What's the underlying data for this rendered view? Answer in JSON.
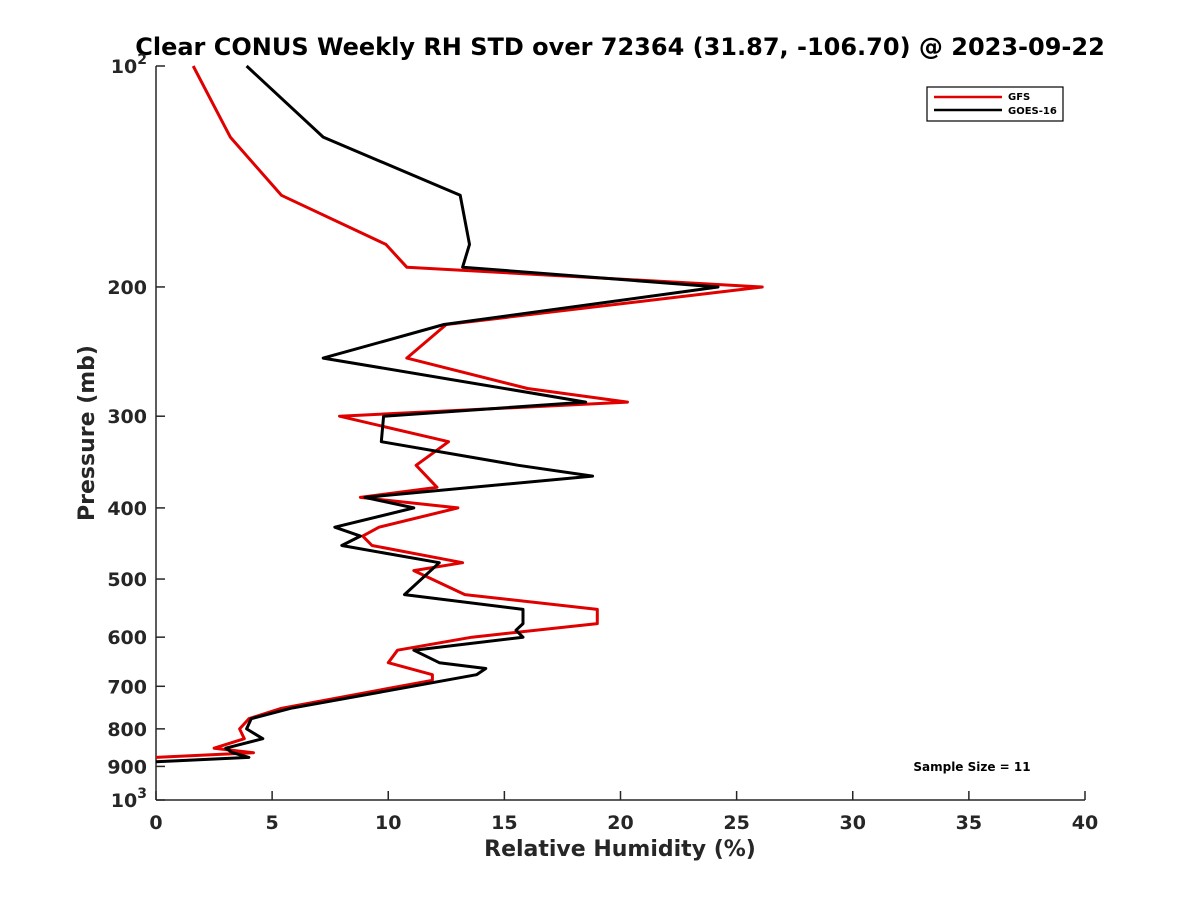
{
  "chart_data": {
    "type": "line",
    "title": "Clear CONUS Weekly RH STD over 72364 (31.87, -106.70) @ 2023-09-22",
    "xlabel": "Relative Humidity (%)",
    "ylabel": "Pressure (mb)",
    "xlim": [
      0,
      40
    ],
    "ylim": [
      100,
      1000
    ],
    "y_scale": "log",
    "y_reversed": true,
    "grid": false,
    "legend_position": "top-right",
    "x_ticks": [
      "0",
      "5",
      "10",
      "15",
      "20",
      "25",
      "30",
      "35",
      "40"
    ],
    "y_ticks": [
      {
        "value": 100,
        "base": "10",
        "exp": "2"
      },
      {
        "value": 200,
        "label": "200"
      },
      {
        "value": 300,
        "label": "300"
      },
      {
        "value": 400,
        "label": "400"
      },
      {
        "value": 500,
        "label": "500"
      },
      {
        "value": 600,
        "label": "600"
      },
      {
        "value": 700,
        "label": "700"
      },
      {
        "value": 800,
        "label": "800"
      },
      {
        "value": 900,
        "label": "900"
      },
      {
        "value": 1000,
        "base": "10",
        "exp": "3"
      }
    ],
    "annotation": "Sample Size = 11",
    "series": [
      {
        "name": "GFS",
        "color": "#e00000",
        "points": [
          [
            1.6,
            100
          ],
          [
            3.2,
            125
          ],
          [
            5.4,
            150
          ],
          [
            9.9,
            175
          ],
          [
            10.8,
            188
          ],
          [
            26.1,
            200
          ],
          [
            12.5,
            225
          ],
          [
            10.8,
            250
          ],
          [
            16.0,
            275
          ],
          [
            20.3,
            287
          ],
          [
            7.9,
            300
          ],
          [
            12.6,
            325
          ],
          [
            11.2,
            350
          ],
          [
            12.1,
            375
          ],
          [
            8.8,
            387
          ],
          [
            13.0,
            400
          ],
          [
            9.6,
            425
          ],
          [
            8.9,
            437
          ],
          [
            9.3,
            450
          ],
          [
            13.2,
            475
          ],
          [
            11.1,
            487
          ],
          [
            13.3,
            525
          ],
          [
            19.0,
            550
          ],
          [
            19.0,
            575
          ],
          [
            13.6,
            600
          ],
          [
            10.4,
            625
          ],
          [
            10.0,
            650
          ],
          [
            11.9,
            675
          ],
          [
            11.9,
            687
          ],
          [
            5.4,
            750
          ],
          [
            4.0,
            775
          ],
          [
            3.6,
            800
          ],
          [
            3.8,
            825
          ],
          [
            2.5,
            850
          ],
          [
            4.2,
            862
          ],
          [
            0.0,
            875
          ]
        ]
      },
      {
        "name": "GOES-16",
        "color": "#000000",
        "points": [
          [
            3.9,
            100
          ],
          [
            7.2,
            125
          ],
          [
            13.1,
            150
          ],
          [
            13.5,
            175
          ],
          [
            13.2,
            188
          ],
          [
            24.2,
            200
          ],
          [
            12.4,
            225
          ],
          [
            7.2,
            250
          ],
          [
            18.5,
            287
          ],
          [
            9.8,
            300
          ],
          [
            9.7,
            325
          ],
          [
            15.6,
            350
          ],
          [
            18.8,
            362
          ],
          [
            9.0,
            387
          ],
          [
            11.1,
            400
          ],
          [
            7.7,
            425
          ],
          [
            8.8,
            437
          ],
          [
            8.0,
            450
          ],
          [
            12.2,
            475
          ],
          [
            10.7,
            525
          ],
          [
            15.8,
            550
          ],
          [
            15.8,
            575
          ],
          [
            15.5,
            587
          ],
          [
            15.8,
            600
          ],
          [
            11.1,
            625
          ],
          [
            12.2,
            650
          ],
          [
            14.2,
            662
          ],
          [
            13.8,
            675
          ],
          [
            5.8,
            750
          ],
          [
            4.1,
            775
          ],
          [
            3.9,
            800
          ],
          [
            4.6,
            825
          ],
          [
            3.0,
            850
          ],
          [
            3.3,
            862
          ],
          [
            4.0,
            875
          ],
          [
            0.0,
            887
          ]
        ]
      }
    ]
  }
}
